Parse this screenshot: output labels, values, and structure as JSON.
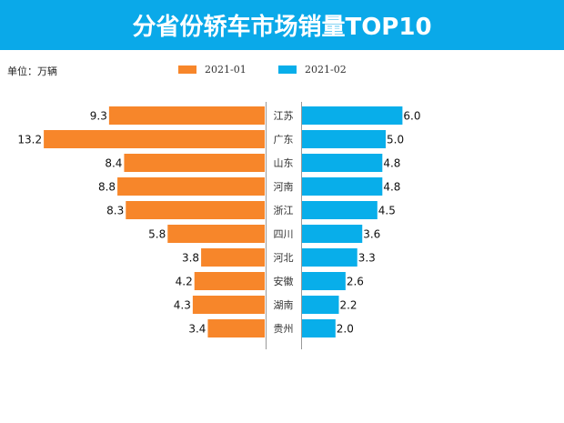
{
  "colors": {
    "header": "#0aa9e9",
    "series1": "#f7862a",
    "series2": "#08aeea"
  },
  "chart_data": {
    "type": "bar",
    "orientation": "horizontal-butterfly",
    "title": "分省份轿车市场销量TOP10",
    "unit": "单位：万辆",
    "legend_position": "top",
    "grid": false,
    "categories": [
      "江苏",
      "广东",
      "山东",
      "河南",
      "浙江",
      "四川",
      "河北",
      "安徽",
      "湖南",
      "贵州"
    ],
    "series": [
      {
        "name": "2021-01",
        "side": "left",
        "values": [
          9.3,
          13.2,
          8.4,
          8.8,
          8.3,
          5.8,
          3.8,
          4.2,
          4.3,
          3.4
        ]
      },
      {
        "name": "2021-02",
        "side": "right",
        "values": [
          6.0,
          5.0,
          4.8,
          4.8,
          4.5,
          3.6,
          3.3,
          2.6,
          2.2,
          2.0
        ]
      }
    ]
  }
}
